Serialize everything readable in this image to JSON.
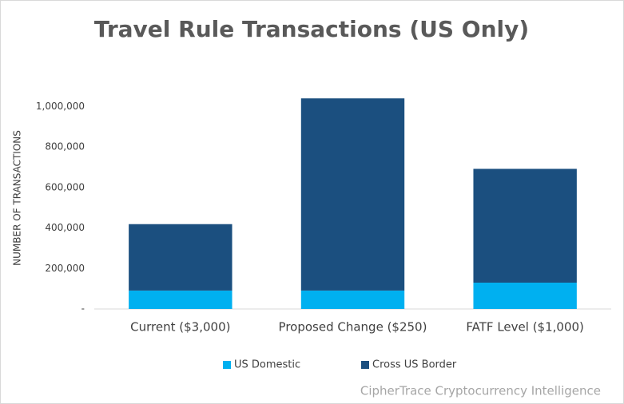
{
  "chart_data": {
    "type": "stacked_bar",
    "title": "Travel Rule Transactions (US Only)",
    "y_label": "NUMBER OF TRANSACTIONS",
    "categories": [
      "Current ($3,000)",
      "Proposed Change ($250)",
      "FATF Level ($1,000)"
    ],
    "series": [
      {
        "name": "US Domestic",
        "color": "#00b0f0",
        "values": [
          91000,
          91000,
          130000
        ]
      },
      {
        "name": "Cross US Border",
        "color": "#1b4f7f",
        "values": [
          328000,
          949000,
          562000
        ]
      }
    ],
    "ylim": [
      0,
      1100000
    ],
    "yticks": [
      {
        "value": 0,
        "label": "-"
      },
      {
        "value": 200000,
        "label": "200,000"
      },
      {
        "value": 400000,
        "label": "400,000"
      },
      {
        "value": 600000,
        "label": "600,000"
      },
      {
        "value": 800000,
        "label": "800,000"
      },
      {
        "value": 1000000,
        "label": "1,000,000"
      }
    ],
    "legend": "bottom",
    "source": "CipherTrace Cryptocurrency Intelligence"
  }
}
